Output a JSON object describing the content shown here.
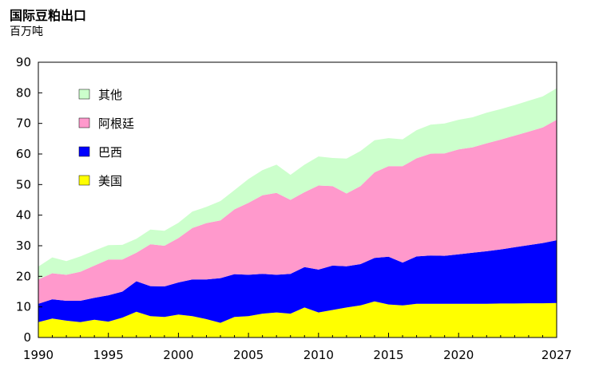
{
  "header": {
    "title": "国际豆粕出口",
    "subtitle": "百万吨"
  },
  "chart_data": {
    "type": "area",
    "stacked": true,
    "title": "国际豆粕出口",
    "ylabel": "百万吨",
    "xlim": [
      1990,
      2027
    ],
    "ylim": [
      0,
      90
    ],
    "y_ticks": [
      0,
      10,
      20,
      30,
      40,
      50,
      60,
      70,
      80,
      90
    ],
    "x_ticks": [
      1990,
      1995,
      2000,
      2005,
      2010,
      2015,
      2020,
      2027
    ],
    "legend_position": "top-left",
    "x": [
      1990,
      1991,
      1992,
      1993,
      1994,
      1995,
      1996,
      1997,
      1998,
      1999,
      2000,
      2001,
      2002,
      2003,
      2004,
      2005,
      2006,
      2007,
      2008,
      2009,
      2010,
      2011,
      2012,
      2013,
      2014,
      2015,
      2016,
      2017,
      2018,
      2019,
      2020,
      2021,
      2022,
      2023,
      2024,
      2025,
      2026,
      2027
    ],
    "series": [
      {
        "name": "美国",
        "color": "#ffff00",
        "values": [
          5,
          6.2,
          5.5,
          5,
          5.8,
          5.2,
          6.5,
          8.4,
          7,
          6.7,
          7.5,
          7,
          6,
          4.8,
          6.7,
          7,
          7.8,
          8.2,
          7.8,
          9.8,
          8.2,
          9,
          9.8,
          10.5,
          11.8,
          10.8,
          10.5,
          11,
          11,
          11,
          11,
          11,
          11,
          11.1,
          11.1,
          11.2,
          11.2,
          11.3
        ]
      },
      {
        "name": "巴西",
        "color": "#0000ff",
        "values": [
          6,
          6.3,
          6.5,
          7,
          7.2,
          8.6,
          8.5,
          10,
          9.8,
          10,
          10.5,
          12,
          13,
          14.6,
          14,
          13.5,
          13,
          12.3,
          13,
          13.2,
          14,
          14.5,
          13.5,
          13.5,
          14.2,
          15.6,
          14,
          15.5,
          15.8,
          15.7,
          16.2,
          16.7,
          17.2,
          17.7,
          18.4,
          19,
          19.7,
          20.5
        ]
      },
      {
        "name": "阿根廷",
        "color": "#ff99cc",
        "values": [
          8,
          8.5,
          8.5,
          9.5,
          10.5,
          11.7,
          10.5,
          9.3,
          13.7,
          13.3,
          14.5,
          16.8,
          18.4,
          18.9,
          21.2,
          23.5,
          25.7,
          26.8,
          24.2,
          24.5,
          27.5,
          26,
          23.8,
          25.5,
          28,
          29.6,
          31.5,
          32.1,
          33.3,
          33.5,
          34.3,
          34.5,
          35.3,
          35.9,
          36.5,
          37.1,
          37.8,
          39.4
        ]
      },
      {
        "name": "其他",
        "color": "#ccffcc",
        "values": [
          4.2,
          5.2,
          4.5,
          5,
          4.9,
          4.7,
          4.8,
          4.6,
          4.8,
          4.9,
          5,
          5.4,
          5.3,
          6.3,
          6.3,
          7.8,
          8.2,
          9.2,
          8.2,
          9,
          9.5,
          9.2,
          11.4,
          11.5,
          10.5,
          9.2,
          8.8,
          9.2,
          9.5,
          9.8,
          9.7,
          9.8,
          10,
          10,
          10,
          10.1,
          10.1,
          10.3
        ]
      }
    ]
  }
}
